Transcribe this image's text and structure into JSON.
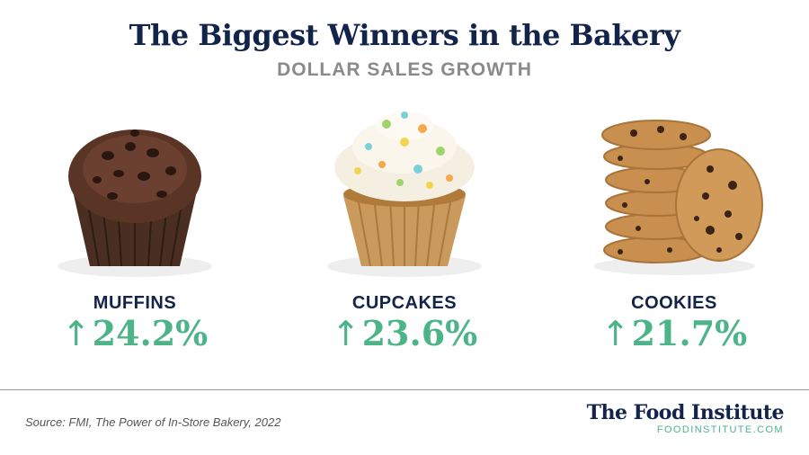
{
  "title": "The Biggest Winners in the Bakery",
  "subtitle": "DOLLAR SALES GROWTH",
  "arrow_symbol": "↑",
  "items": [
    {
      "label": "MUFFINS",
      "value_text": "24.2%",
      "image": "muffin-image"
    },
    {
      "label": "CUPCAKES",
      "value_text": "23.6%",
      "image": "cupcake-image"
    },
    {
      "label": "COOKIES",
      "value_text": "21.7%",
      "image": "cookies-image"
    }
  ],
  "chart_data": {
    "type": "table",
    "title": "The Biggest Winners in the Bakery",
    "subtitle": "DOLLAR SALES GROWTH",
    "categories": [
      "MUFFINS",
      "CUPCAKES",
      "COOKIES"
    ],
    "values": [
      24.2,
      23.6,
      21.7
    ],
    "unit": "%"
  },
  "footer": {
    "source": "Source: FMI, The Power of In-Store Bakery, 2022",
    "brand_name": "The Food Institute",
    "brand_url": "FOODINSTITUTE.COM"
  },
  "colors": {
    "navy": "#13244a",
    "green": "#4db489",
    "gray": "#8a8a8a"
  }
}
